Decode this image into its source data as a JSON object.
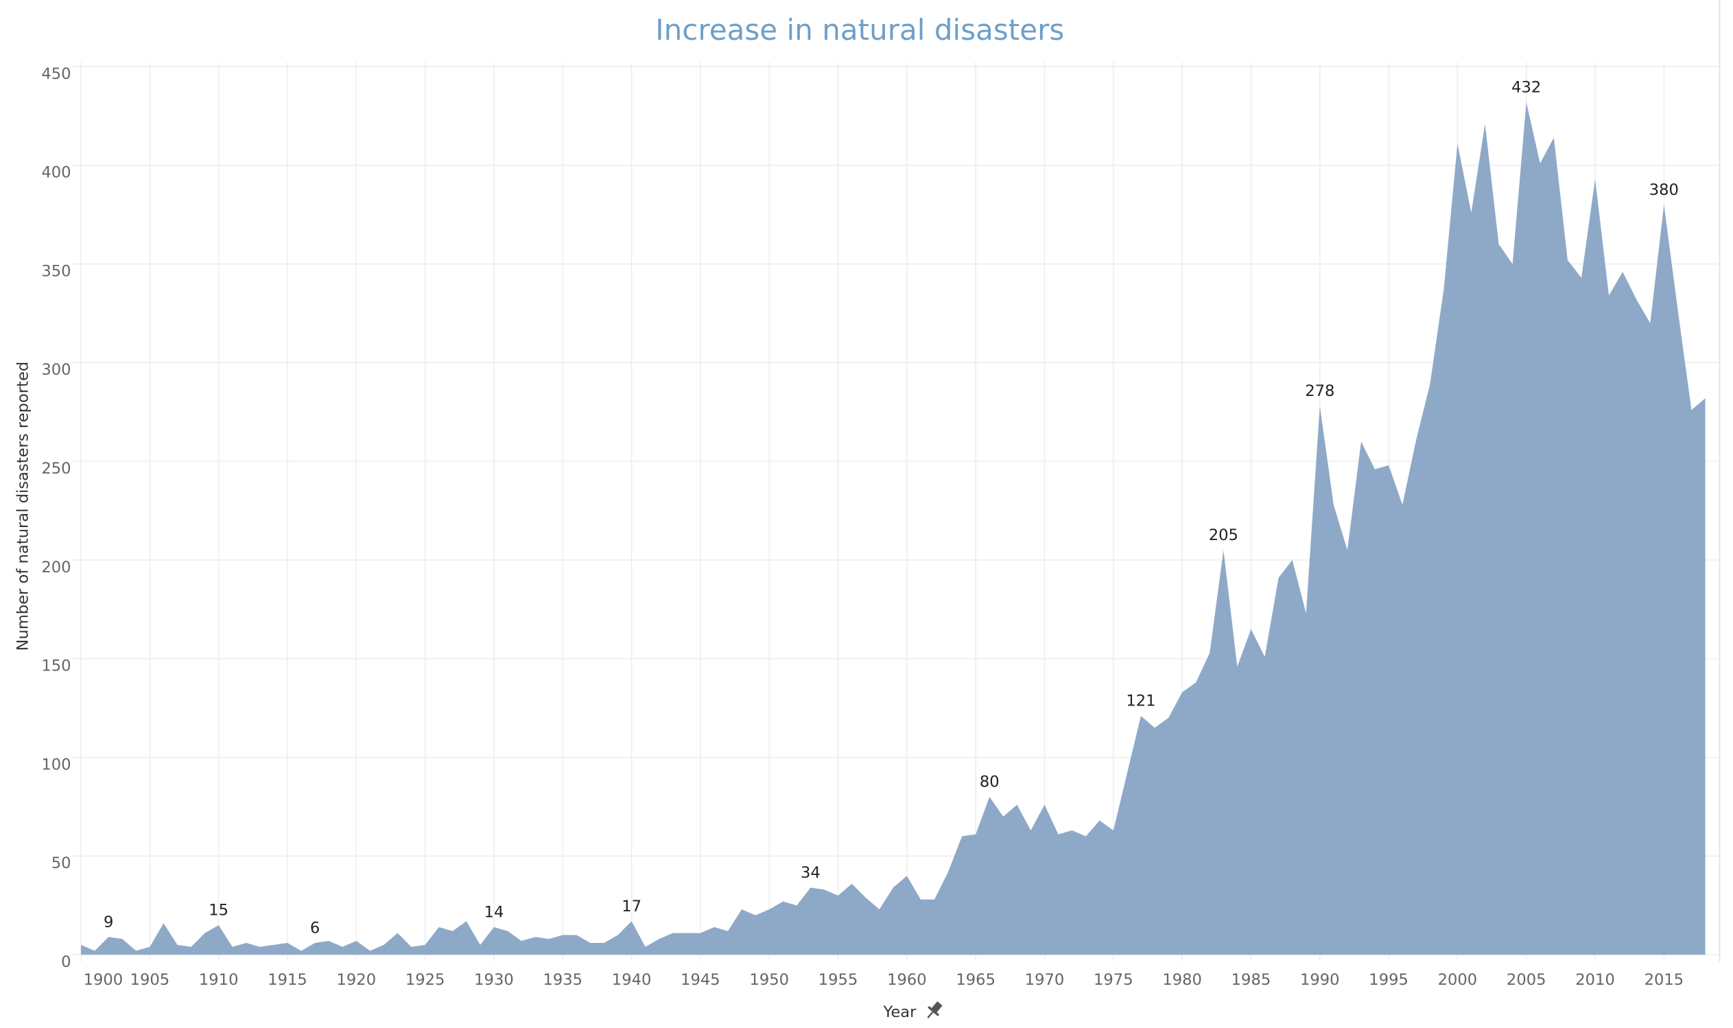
{
  "chart_data": {
    "type": "area",
    "title": "Increase in natural disasters",
    "x_label": "Year",
    "y_label": "Number of natural disasters reported",
    "color": "#8ea9c8",
    "grid": true,
    "xlim": [
      1900,
      2018
    ],
    "ylim": [
      0,
      450
    ],
    "xticks": [
      1900,
      1905,
      1910,
      1915,
      1920,
      1925,
      1930,
      1935,
      1940,
      1945,
      1950,
      1955,
      1960,
      1965,
      1970,
      1975,
      1980,
      1985,
      1990,
      1995,
      2000,
      2005,
      2010,
      2015
    ],
    "yticks": [
      0,
      50,
      100,
      150,
      200,
      250,
      300,
      350,
      400,
      450
    ],
    "x": [
      1900,
      1901,
      1902,
      1903,
      1904,
      1905,
      1906,
      1907,
      1908,
      1909,
      1910,
      1911,
      1912,
      1913,
      1914,
      1915,
      1916,
      1917,
      1918,
      1919,
      1920,
      1921,
      1922,
      1923,
      1924,
      1925,
      1926,
      1927,
      1928,
      1929,
      1930,
      1931,
      1932,
      1933,
      1934,
      1935,
      1936,
      1937,
      1938,
      1939,
      1940,
      1941,
      1942,
      1943,
      1944,
      1945,
      1946,
      1947,
      1948,
      1949,
      1950,
      1951,
      1952,
      1953,
      1954,
      1955,
      1956,
      1957,
      1958,
      1959,
      1960,
      1961,
      1962,
      1963,
      1964,
      1965,
      1966,
      1967,
      1968,
      1969,
      1970,
      1971,
      1972,
      1973,
      1974,
      1975,
      1976,
      1977,
      1978,
      1979,
      1980,
      1981,
      1982,
      1983,
      1984,
      1985,
      1986,
      1987,
      1988,
      1989,
      1990,
      1991,
      1992,
      1993,
      1994,
      1995,
      1996,
      1997,
      1998,
      1999,
      2000,
      2001,
      2002,
      2003,
      2004,
      2005,
      2006,
      2007,
      2008,
      2009,
      2010,
      2011,
      2012,
      2013,
      2014,
      2015,
      2016,
      2017,
      2018
    ],
    "values": [
      5,
      2,
      9,
      8,
      2,
      4,
      16,
      5,
      4,
      11,
      15,
      4,
      6,
      4,
      5,
      6,
      2,
      6,
      7,
      4,
      7,
      2,
      5,
      11,
      4,
      5,
      14,
      12,
      17,
      5,
      14,
      12,
      7,
      9,
      8,
      10,
      10,
      6,
      6,
      10,
      17,
      4,
      8,
      11,
      11,
      11,
      14,
      12,
      23,
      20,
      23,
      27,
      25,
      34,
      33,
      30,
      36,
      29,
      23,
      34,
      40,
      28,
      28,
      42,
      60,
      61,
      80,
      70,
      76,
      63,
      76,
      61,
      63,
      60,
      68,
      63,
      92,
      121,
      115,
      120,
      133,
      138,
      153,
      205,
      146,
      165,
      151,
      191,
      200,
      173,
      278,
      228,
      205,
      260,
      246,
      248,
      228,
      261,
      289,
      337,
      411,
      376,
      421,
      360,
      350,
      432,
      401,
      414,
      352,
      343,
      393,
      334,
      346,
      332,
      320,
      380,
      327,
      276,
      282
    ],
    "value_labels": [
      null,
      null,
      "9",
      null,
      null,
      null,
      null,
      null,
      null,
      null,
      "15",
      null,
      null,
      null,
      null,
      null,
      null,
      "6",
      null,
      null,
      null,
      null,
      null,
      null,
      null,
      null,
      null,
      null,
      null,
      null,
      "14",
      null,
      null,
      null,
      null,
      null,
      null,
      null,
      null,
      null,
      "17",
      null,
      null,
      null,
      null,
      null,
      null,
      null,
      null,
      null,
      null,
      null,
      null,
      "34",
      null,
      null,
      null,
      null,
      null,
      null,
      null,
      null,
      null,
      null,
      null,
      null,
      "80",
      null,
      null,
      null,
      null,
      null,
      null,
      null,
      null,
      null,
      null,
      "121",
      null,
      null,
      null,
      null,
      null,
      "205",
      null,
      null,
      null,
      null,
      null,
      null,
      "278",
      null,
      null,
      null,
      null,
      null,
      null,
      null,
      null,
      null,
      null,
      null,
      null,
      null,
      null,
      "432",
      null,
      null,
      null,
      null,
      null,
      null,
      null,
      null,
      null,
      "380",
      null,
      null,
      null
    ]
  }
}
